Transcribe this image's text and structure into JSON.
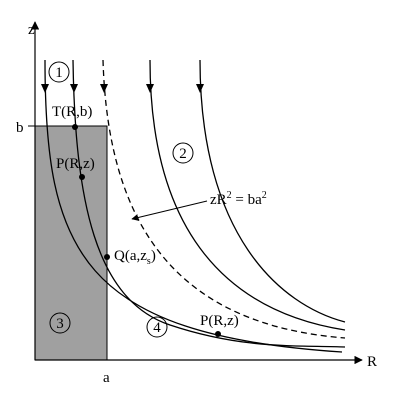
{
  "axes": {
    "z": "z",
    "R": "R",
    "b": "b",
    "a": "a"
  },
  "regions": [
    "1",
    "2",
    "3",
    "4"
  ],
  "points": {
    "T": "T(R,b)",
    "P_upper": "P(R,z)",
    "Q": {
      "main": "Q(a,z",
      "sub": "s",
      "close": ")"
    },
    "P_lower": "P(R,z)"
  },
  "equation": {
    "lhs": "zR",
    "lhs_sup": "2",
    "rhs": " = ba",
    "rhs_sup": "2"
  }
}
